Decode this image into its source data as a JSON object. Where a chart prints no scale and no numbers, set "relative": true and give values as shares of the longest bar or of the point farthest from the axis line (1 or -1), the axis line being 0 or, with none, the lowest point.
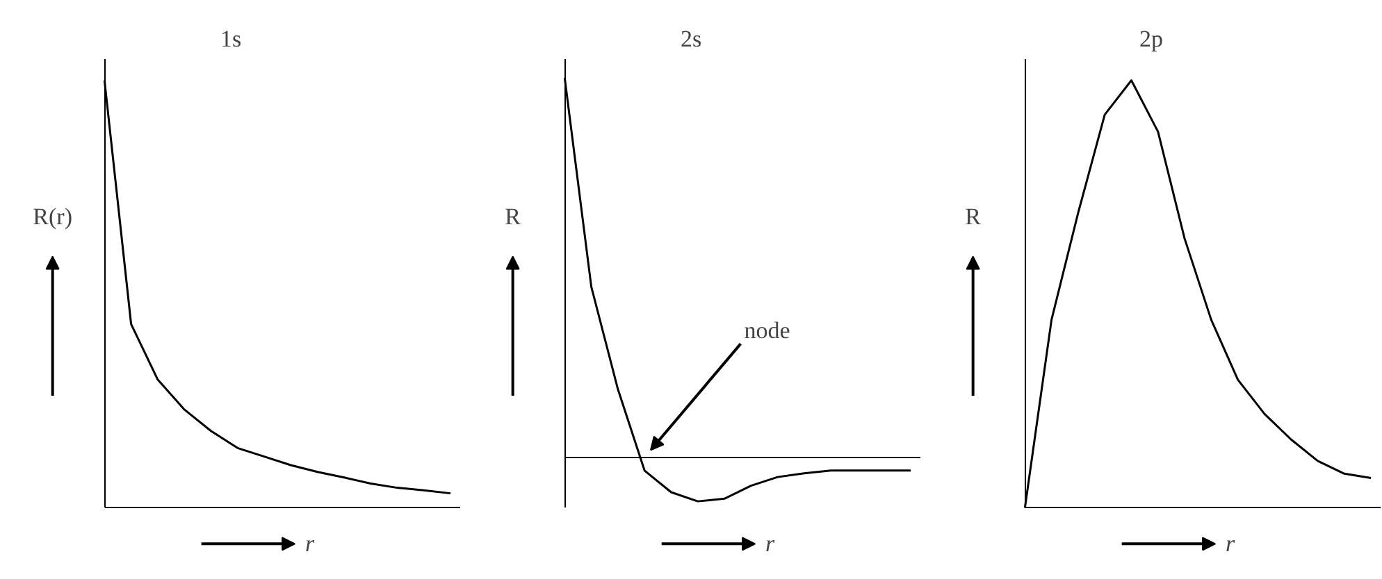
{
  "chart_data": [
    {
      "type": "line",
      "title": "1s",
      "ylabel": "R(r)",
      "xlabel": "r",
      "relative": true,
      "color": "#000000",
      "categories": [
        null,
        null,
        null,
        null,
        null,
        null,
        null,
        null,
        null,
        null,
        null,
        null,
        null,
        null
      ],
      "values": [
        1,
        0.43,
        0.3,
        0.23,
        0.18,
        0.14,
        0.12,
        0.1,
        0.084,
        0.071,
        0.057,
        0.047,
        0.041,
        0.034
      ]
    },
    {
      "type": "line",
      "title": "2s",
      "ylabel": "R",
      "xlabel": "r",
      "relative": true,
      "color": "#000000",
      "categories": [
        null,
        null,
        null,
        null,
        null,
        null,
        null,
        null,
        null,
        null,
        null,
        null,
        null,
        null
      ],
      "values": [
        1,
        0.45,
        0.18,
        -0.034,
        -0.091,
        -0.115,
        -0.108,
        -0.074,
        -0.051,
        -0.041,
        -0.034,
        -0.034,
        -0.034,
        -0.034
      ],
      "annotations": [
        "node"
      ]
    },
    {
      "type": "line",
      "title": "2p",
      "ylabel": "R",
      "xlabel": "r",
      "relative": true,
      "color": "#000000",
      "categories": [
        null,
        null,
        null,
        null,
        null,
        null,
        null,
        null,
        null,
        null,
        null,
        null,
        null,
        null
      ],
      "values": [
        0,
        0.44,
        0.69,
        0.92,
        1,
        0.88,
        0.63,
        0.44,
        0.3,
        0.22,
        0.16,
        0.11,
        0.08,
        0.07
      ]
    }
  ]
}
